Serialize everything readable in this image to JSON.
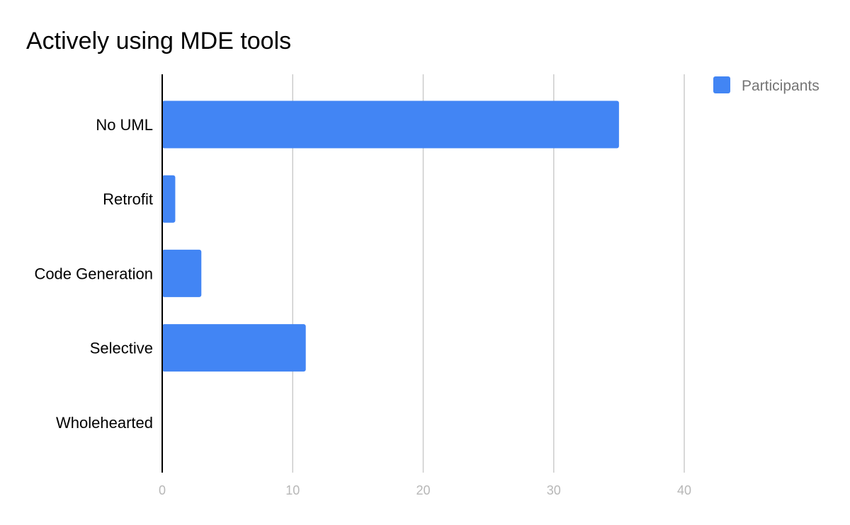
{
  "chart_data": {
    "type": "bar",
    "orientation": "horizontal",
    "title": "Actively using MDE tools",
    "categories": [
      "No UML",
      "Retrofit",
      "Code Generation",
      "Selective",
      "Wholehearted"
    ],
    "series": [
      {
        "name": "Participants",
        "values": [
          35,
          1,
          3,
          11,
          0
        ],
        "color": "#4285f4"
      }
    ],
    "xlim": [
      0,
      40
    ],
    "xticks": [
      "0",
      "10",
      "20",
      "30",
      "40"
    ],
    "grid": true,
    "legend": "top-right"
  }
}
